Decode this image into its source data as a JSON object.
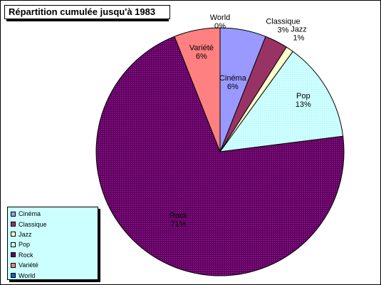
{
  "chart_data": {
    "type": "pie",
    "title": "Répartition cumulée jusqu'à 1983",
    "legend_position": "bottom-left",
    "slices": [
      {
        "name": "Cinéma",
        "value": 6,
        "label": "6%",
        "color": "#9999ff"
      },
      {
        "name": "Classique",
        "value": 3,
        "label": "3%",
        "color": "#993366"
      },
      {
        "name": "Jazz",
        "value": 1,
        "label": "1%",
        "color": "#ffffcc"
      },
      {
        "name": "Pop",
        "value": 13,
        "label": "13%",
        "color": "#ccffff"
      },
      {
        "name": "Rock",
        "value": 71,
        "label": "71%",
        "color": "#660066"
      },
      {
        "name": "Variété",
        "value": 6,
        "label": "6%",
        "color": "#ff8080"
      },
      {
        "name": "World",
        "value": 0,
        "label": "0%",
        "color": "#0066cc"
      }
    ]
  },
  "colors": {
    "legend_background": "#ccffff",
    "outline": "#000000"
  }
}
